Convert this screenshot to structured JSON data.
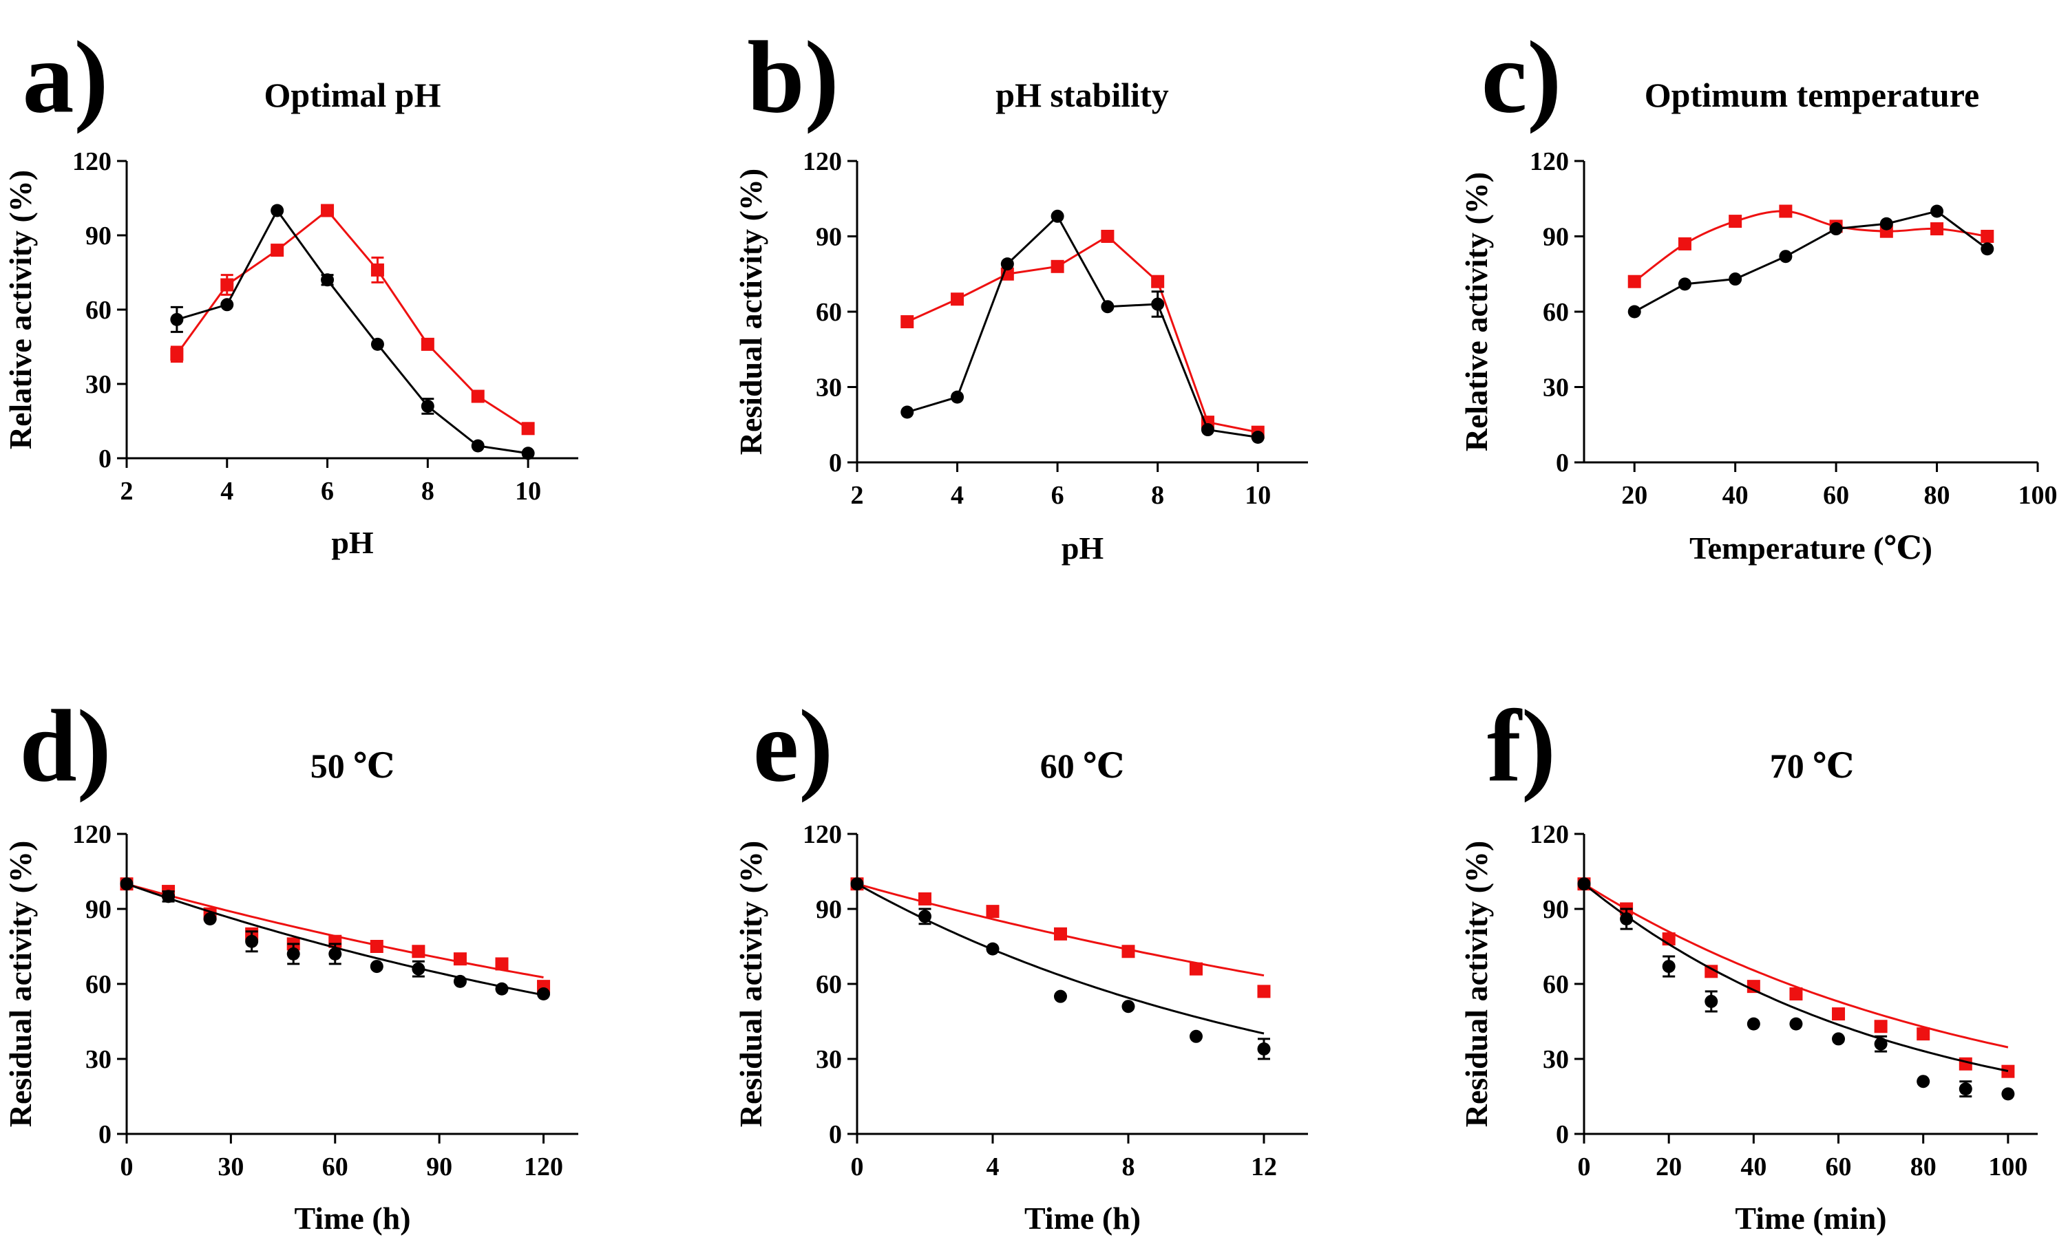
{
  "colors": {
    "series_black": "#000000",
    "series_red": "#ee1111"
  },
  "chart_data": [
    {
      "type": "line",
      "panel": "a)",
      "title": "Optimal pH",
      "xlabel": "pH",
      "ylabel": "Relative activity (%)",
      "xlim": [
        2,
        11
      ],
      "ylim": [
        0,
        120
      ],
      "xticks": [
        2,
        4,
        6,
        8,
        10
      ],
      "yticks": [
        0,
        30,
        60,
        90,
        120
      ],
      "xtick_labels": [
        "2",
        "4",
        "6",
        "8",
        "10"
      ],
      "ytick_labels": [
        "0",
        "30",
        "60",
        "90",
        "120"
      ],
      "series": [
        {
          "name": "black",
          "marker": "circle",
          "connect": "line",
          "x": [
            3,
            4,
            5,
            6,
            7,
            8,
            9,
            10
          ],
          "y": [
            56,
            62,
            100,
            72,
            46,
            21,
            5,
            2
          ],
          "err": [
            5,
            1,
            1,
            2,
            1,
            3,
            1,
            1
          ]
        },
        {
          "name": "red",
          "marker": "square",
          "connect": "line",
          "x": [
            3,
            4,
            5,
            6,
            7,
            8,
            9,
            10
          ],
          "y": [
            42,
            70,
            84,
            100,
            76,
            46,
            25,
            12
          ],
          "err": [
            3,
            4,
            1,
            2,
            5,
            1,
            1,
            1
          ]
        }
      ]
    },
    {
      "type": "line",
      "panel": "b)",
      "title": "pH stability",
      "xlabel": "pH",
      "ylabel": "Residual  activity (%)",
      "xlim": [
        2,
        11
      ],
      "ylim": [
        0,
        120
      ],
      "xticks": [
        2,
        4,
        6,
        8,
        10
      ],
      "yticks": [
        0,
        30,
        60,
        90,
        120
      ],
      "xtick_labels": [
        "2",
        "4",
        "6",
        "8",
        "10"
      ],
      "ytick_labels": [
        "0",
        "30",
        "60",
        "90",
        "120"
      ],
      "series": [
        {
          "name": "black",
          "marker": "circle",
          "connect": "line",
          "x": [
            3,
            4,
            5,
            6,
            7,
            8,
            9,
            10
          ],
          "y": [
            20,
            26,
            79,
            98,
            62,
            63,
            13,
            10
          ],
          "err": [
            1,
            1,
            1,
            1,
            1,
            5,
            1,
            1
          ]
        },
        {
          "name": "red",
          "marker": "square",
          "connect": "line",
          "x": [
            3,
            4,
            5,
            6,
            7,
            8,
            9,
            10
          ],
          "y": [
            56,
            65,
            75,
            78,
            90,
            72,
            16,
            12
          ],
          "err": [
            1,
            1,
            1,
            1,
            1,
            1,
            1,
            1
          ]
        }
      ]
    },
    {
      "type": "line",
      "panel": "c)",
      "title": "Optimum temperature",
      "xlabel": "Temperature (℃)",
      "ylabel": "Relative activity (%)",
      "xlim": [
        10,
        100
      ],
      "ylim": [
        0,
        120
      ],
      "xticks": [
        20,
        40,
        60,
        80,
        100
      ],
      "yticks": [
        0,
        30,
        60,
        90,
        120
      ],
      "xtick_labels": [
        "20",
        "40",
        "60",
        "80",
        "100"
      ],
      "ytick_labels": [
        "0",
        "30",
        "60",
        "90",
        "120"
      ],
      "series": [
        {
          "name": "black",
          "marker": "circle",
          "connect": "line",
          "x": [
            20,
            30,
            40,
            50,
            60,
            70,
            80,
            90
          ],
          "y": [
            60,
            71,
            73,
            82,
            93,
            95,
            100,
            85
          ],
          "err": [
            1,
            1,
            1,
            1,
            1,
            1,
            1,
            1
          ]
        },
        {
          "name": "red",
          "marker": "square",
          "connect": "smooth",
          "x": [
            20,
            30,
            40,
            50,
            60,
            70,
            80,
            90
          ],
          "y": [
            72,
            87,
            96,
            100,
            94,
            92,
            93,
            90
          ],
          "err": [
            1,
            2,
            2,
            1,
            1,
            1,
            1,
            1
          ]
        }
      ]
    },
    {
      "type": "scatter",
      "panel": "d)",
      "title": "50 ℃",
      "xlabel": "Time (h)",
      "ylabel": "Residual  activity (%)",
      "xlim": [
        0,
        130
      ],
      "ylim": [
        0,
        120
      ],
      "xticks": [
        0,
        30,
        60,
        90,
        120
      ],
      "yticks": [
        0,
        30,
        60,
        90,
        120
      ],
      "xtick_labels": [
        "0",
        "30",
        "60",
        "90",
        "120"
      ],
      "ytick_labels": [
        "0",
        "30",
        "60",
        "90",
        "120"
      ],
      "fit_xmax": 120,
      "series": [
        {
          "name": "black",
          "marker": "circle",
          "fit_k": 0.0049,
          "x": [
            0,
            12,
            24,
            36,
            48,
            60,
            72,
            84,
            96,
            108,
            120
          ],
          "y": [
            100,
            95,
            86,
            77,
            72,
            72,
            67,
            66,
            61,
            58,
            56
          ],
          "err": [
            1,
            2,
            1,
            4,
            4,
            4,
            1,
            3,
            1,
            1,
            1
          ]
        },
        {
          "name": "red",
          "marker": "square",
          "fit_k": 0.0039,
          "x": [
            0,
            12,
            24,
            36,
            48,
            60,
            72,
            84,
            96,
            108,
            120
          ],
          "y": [
            100,
            97,
            88,
            80,
            76,
            77,
            75,
            73,
            70,
            68,
            59
          ],
          "err": [
            1,
            1,
            1,
            1,
            1,
            1,
            1,
            1,
            1,
            1,
            1
          ]
        }
      ]
    },
    {
      "type": "scatter",
      "panel": "e)",
      "title": "60 ℃",
      "xlabel": "Time (h)",
      "ylabel": "Residual  activity (%)",
      "xlim": [
        0,
        13.3
      ],
      "ylim": [
        0,
        120
      ],
      "xticks": [
        0,
        4,
        8,
        12
      ],
      "yticks": [
        0,
        30,
        60,
        90,
        120
      ],
      "xtick_labels": [
        "0",
        "4",
        "8",
        "12"
      ],
      "ytick_labels": [
        "0",
        "30",
        "60",
        "90",
        "120"
      ],
      "fit_xmax": 12,
      "series": [
        {
          "name": "black",
          "marker": "circle",
          "fit_k": 0.076,
          "x": [
            0,
            2,
            4,
            6,
            8,
            10,
            12
          ],
          "y": [
            100,
            87,
            74,
            55,
            51,
            39,
            34
          ],
          "err": [
            1,
            3,
            1,
            1,
            1,
            1,
            4
          ]
        },
        {
          "name": "red",
          "marker": "square",
          "fit_k": 0.038,
          "x": [
            0,
            2,
            4,
            6,
            8,
            10,
            12
          ],
          "y": [
            100,
            94,
            89,
            80,
            73,
            66,
            57
          ],
          "err": [
            1,
            1,
            1,
            1,
            1,
            1,
            1
          ]
        }
      ]
    },
    {
      "type": "scatter",
      "panel": "f)",
      "title": "70 ℃",
      "xlabel": "Time (min)",
      "ylabel": "Residual  activity (%)",
      "xlim": [
        0,
        107
      ],
      "ylim": [
        0,
        120
      ],
      "xticks": [
        0,
        20,
        40,
        60,
        80,
        100
      ],
      "yticks": [
        0,
        30,
        60,
        90,
        120
      ],
      "xtick_labels": [
        "0",
        "20",
        "40",
        "60",
        "80",
        "100"
      ],
      "ytick_labels": [
        "0",
        "30",
        "60",
        "90",
        "120"
      ],
      "fit_xmax": 100,
      "series": [
        {
          "name": "black",
          "marker": "circle",
          "fit_k": 0.0138,
          "x": [
            0,
            10,
            20,
            30,
            40,
            50,
            60,
            70,
            80,
            90,
            100
          ],
          "y": [
            100,
            86,
            67,
            53,
            44,
            44,
            38,
            36,
            21,
            18,
            16
          ],
          "err": [
            1,
            4,
            4,
            4,
            1,
            1,
            1,
            3,
            1,
            3,
            1
          ]
        },
        {
          "name": "red",
          "marker": "square",
          "fit_k": 0.0106,
          "x": [
            0,
            10,
            20,
            30,
            40,
            50,
            60,
            70,
            80,
            90,
            100
          ],
          "y": [
            100,
            90,
            78,
            65,
            59,
            56,
            48,
            43,
            40,
            28,
            25
          ],
          "err": [
            1,
            1,
            1,
            1,
            1,
            1,
            1,
            1,
            1,
            1,
            1
          ]
        }
      ]
    }
  ]
}
